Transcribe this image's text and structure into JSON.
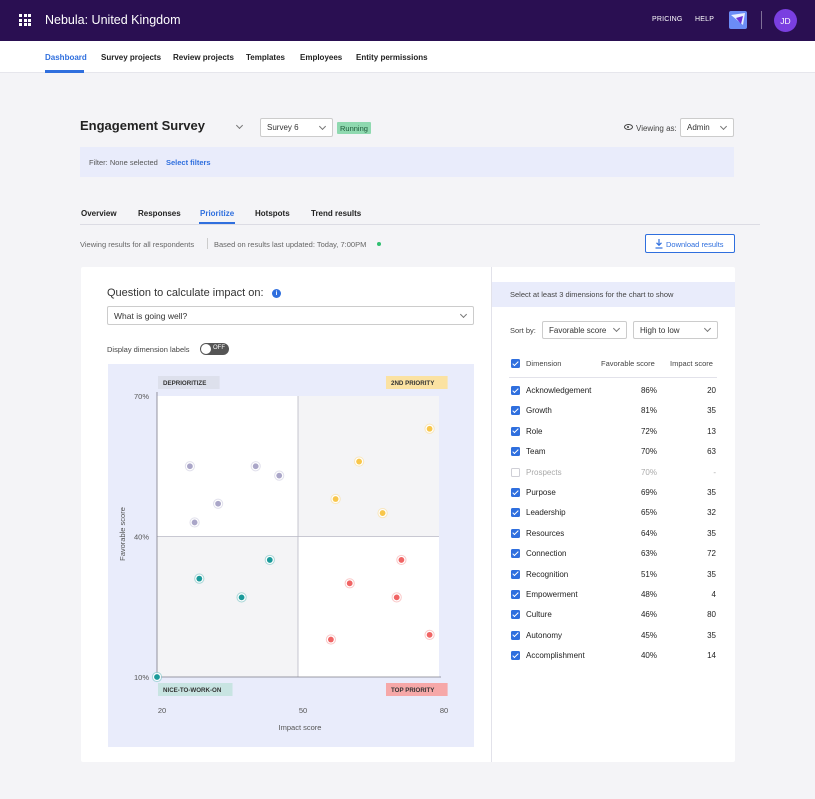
{
  "app": {
    "title": "Nebula: United Kingdom",
    "pricing": "PRICING",
    "help": "HELP",
    "avatar_initials": "JD"
  },
  "subnav": [
    {
      "label": "Dashboard",
      "active": true
    },
    {
      "label": "Survey projects"
    },
    {
      "label": "Review projects"
    },
    {
      "label": "Templates"
    },
    {
      "label": "Employees"
    },
    {
      "label": "Entity permissions"
    }
  ],
  "survey": {
    "title": "Engagement Survey",
    "selected": "Survey 6",
    "status": "Running",
    "viewing_as_label": "Viewing as:",
    "viewing_as_value": "Admin"
  },
  "filter": {
    "text": "Filter: None selected",
    "link": "Select filters"
  },
  "tabs": [
    {
      "label": "Overview"
    },
    {
      "label": "Responses"
    },
    {
      "label": "Prioritize",
      "active": true
    },
    {
      "label": "Hotspots"
    },
    {
      "label": "Trend results"
    }
  ],
  "info": {
    "respondents": "Viewing results for all respondents",
    "updated": "Based on results last updated: Today, 7:00PM",
    "download": "Download results"
  },
  "impact": {
    "question_label": "Question to calculate impact on:",
    "question_value": "What is going well?",
    "display_labels": "Display dimension labels",
    "toggle": "OFF"
  },
  "right": {
    "hint": "Select at least 3 dimensions for the chart to show",
    "sort_by": "Sort by:",
    "sort_field": "Favorable score",
    "sort_order": "High to low",
    "col_dimension": "Dimension",
    "col_favorable": "Favorable score",
    "col_impact": "Impact score",
    "rows": [
      {
        "name": "Acknowledgement",
        "favorable": "86%",
        "impact": "20",
        "checked": true
      },
      {
        "name": "Growth",
        "favorable": "81%",
        "impact": "35",
        "checked": true
      },
      {
        "name": "Role",
        "favorable": "72%",
        "impact": "13",
        "checked": true
      },
      {
        "name": "Team",
        "favorable": "70%",
        "impact": "63",
        "checked": true
      },
      {
        "name": "Prospects",
        "favorable": "70%",
        "impact": "-",
        "checked": false
      },
      {
        "name": "Purpose",
        "favorable": "69%",
        "impact": "35",
        "checked": true
      },
      {
        "name": "Leadership",
        "favorable": "65%",
        "impact": "32",
        "checked": true
      },
      {
        "name": "Resources",
        "favorable": "64%",
        "impact": "35",
        "checked": true
      },
      {
        "name": "Connection",
        "favorable": "63%",
        "impact": "72",
        "checked": true
      },
      {
        "name": "Recognition",
        "favorable": "51%",
        "impact": "35",
        "checked": true
      },
      {
        "name": "Empowerment",
        "favorable": "48%",
        "impact": "4",
        "checked": true
      },
      {
        "name": "Culture",
        "favorable": "46%",
        "impact": "80",
        "checked": true
      },
      {
        "name": "Autonomy",
        "favorable": "45%",
        "impact": "35",
        "checked": true
      },
      {
        "name": "Accomplishment",
        "favorable": "40%",
        "impact": "14",
        "checked": true
      }
    ]
  },
  "colors": {
    "accent": "#2f6fde",
    "topbar": "#2a0f52",
    "running": "#8fd9b0",
    "deprioritize": "#aaa6c8",
    "priority2": "#f8c64a",
    "nice": "#1b9a9a",
    "top": "#f06464"
  },
  "chart_data": {
    "type": "scatter",
    "xlabel": "Impact score",
    "ylabel": "Favorable score",
    "xticks": [
      "20",
      "50",
      "80"
    ],
    "yticks": [
      "70%",
      "40%",
      "10%"
    ],
    "xlim": [
      20,
      80
    ],
    "ylim": [
      10,
      70
    ],
    "x_split": 50,
    "y_split": 40,
    "quadrant_labels": {
      "top_left": "DEPRIORITIZE",
      "top_right": "2ND PRIORITY",
      "bottom_left": "NICE-TO-WORK-ON",
      "bottom_right": "TOP PRIORITY"
    },
    "series": [
      {
        "quadrant": "top_left",
        "color": "#aaa6c8",
        "x": [
          27,
          41,
          46,
          33,
          28
        ],
        "y": [
          55,
          55,
          53,
          47,
          43
        ]
      },
      {
        "quadrant": "top_right",
        "color": "#f8c64a",
        "x": [
          78,
          63,
          58,
          68
        ],
        "y": [
          63,
          56,
          48,
          45
        ]
      },
      {
        "quadrant": "bottom_left",
        "color": "#1b9a9a",
        "x": [
          44,
          29,
          38,
          20
        ],
        "y": [
          35,
          31,
          27,
          10
        ]
      },
      {
        "quadrant": "bottom_right",
        "color": "#f06464",
        "x": [
          72,
          61,
          71,
          78,
          57
        ],
        "y": [
          35,
          30,
          27,
          19,
          18
        ]
      }
    ]
  }
}
